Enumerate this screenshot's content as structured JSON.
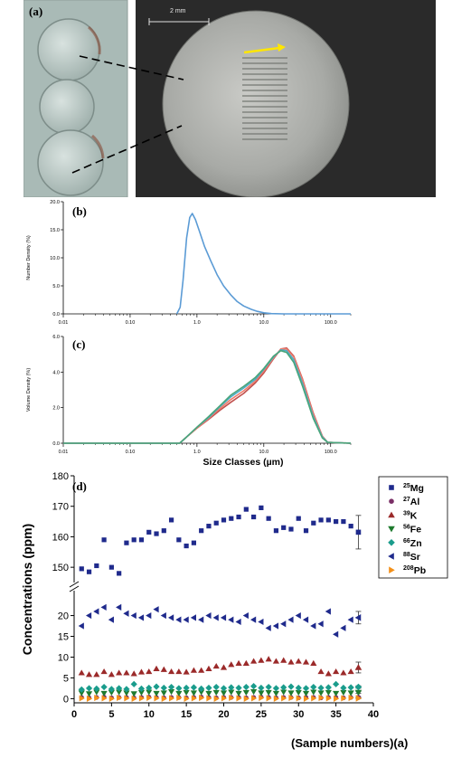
{
  "figure": {
    "panels": [
      "(a)",
      "(b)",
      "(c)",
      "(d)"
    ],
    "photo_scale_label": "2 mm",
    "bottom_caption": "(Sample numbers)(a)"
  },
  "chart_data": [
    {
      "panel": "(b)",
      "type": "line",
      "xscale": "log",
      "xlim": [
        0.01,
        200
      ],
      "ylim": [
        0,
        20
      ],
      "x_ticks": [
        "0.01",
        "0.10",
        "1.0",
        "10.0",
        "100.0"
      ],
      "y_ticks": [
        "0.0",
        "5.0",
        "10.0",
        "15.0",
        "20.0"
      ],
      "xlabel": "Size Classes (µm)",
      "ylabel": "Number Density (%)",
      "color": "#5b9bd5",
      "series": [
        {
          "x": [
            0.5,
            0.56,
            0.62,
            0.7,
            0.78,
            0.85,
            0.95,
            1.1,
            1.3,
            1.6,
            2,
            2.5,
            3.2,
            4,
            5,
            6.5,
            8,
            10,
            13,
            20,
            200
          ],
          "y": [
            0,
            1.2,
            6,
            13.5,
            17.2,
            17.9,
            16.8,
            14.6,
            12,
            9.5,
            7,
            5,
            3.4,
            2.2,
            1.4,
            0.8,
            0.45,
            0.2,
            0.05,
            0,
            0
          ]
        }
      ]
    },
    {
      "panel": "(c)",
      "type": "line",
      "xscale": "log",
      "xlim": [
        0.01,
        200
      ],
      "ylim": [
        0,
        6
      ],
      "x_ticks": [
        "0.01",
        "0.10",
        "1.0",
        "10.0",
        "100.0"
      ],
      "y_ticks": [
        "0.0",
        "2.0",
        "4.0",
        "6.0"
      ],
      "xlabel": "Size Classes (µm)",
      "ylabel": "Volume Density (%)",
      "series": [
        {
          "color": "#c0504d",
          "x": [
            0.01,
            0.55,
            0.7,
            1,
            1.5,
            2.2,
            3.2,
            5,
            7.5,
            10,
            14,
            18,
            22,
            28,
            38,
            55,
            75,
            90,
            200
          ],
          "y": [
            0,
            0,
            0.35,
            0.85,
            1.35,
            1.85,
            2.3,
            2.8,
            3.4,
            3.95,
            4.75,
            5.3,
            5.35,
            4.9,
            3.6,
            1.7,
            0.4,
            0.05,
            0
          ]
        },
        {
          "color": "#ef7b6b",
          "x": [
            0.01,
            0.55,
            0.7,
            1,
            1.5,
            2.2,
            3.2,
            5,
            7.5,
            10,
            14,
            18,
            22,
            28,
            38,
            55,
            75,
            90,
            200
          ],
          "y": [
            0,
            0,
            0.35,
            0.85,
            1.4,
            1.95,
            2.45,
            2.95,
            3.5,
            4.05,
            4.8,
            5.3,
            5.3,
            4.85,
            3.55,
            1.65,
            0.4,
            0.05,
            0
          ]
        },
        {
          "color": "#4bacc6",
          "x": [
            0.01,
            0.55,
            0.7,
            1,
            1.5,
            2.2,
            3.2,
            5,
            7.5,
            10,
            14,
            18,
            22,
            28,
            38,
            55,
            75,
            90,
            200
          ],
          "y": [
            0,
            0,
            0.35,
            0.9,
            1.45,
            2.05,
            2.6,
            3.1,
            3.6,
            4.15,
            4.85,
            5.25,
            5.2,
            4.7,
            3.35,
            1.5,
            0.35,
            0.05,
            0
          ]
        },
        {
          "color": "#4aa57a",
          "x": [
            0.01,
            0.55,
            0.7,
            1,
            1.5,
            2.2,
            3.2,
            5,
            7.5,
            10,
            14,
            18,
            22,
            28,
            38,
            55,
            75,
            90,
            200
          ],
          "y": [
            0,
            0,
            0.35,
            0.9,
            1.5,
            2.1,
            2.7,
            3.2,
            3.7,
            4.2,
            4.9,
            5.2,
            5.1,
            4.55,
            3.2,
            1.4,
            0.3,
            0.05,
            0
          ]
        }
      ]
    },
    {
      "panel": "(d)",
      "type": "scatter",
      "ylabel": "Concentrations (ppm)",
      "xlim": [
        0,
        40
      ],
      "x_ticks": [
        "0",
        "5",
        "10",
        "15",
        "20",
        "25",
        "30",
        "35",
        "40"
      ],
      "y_axis_break": true,
      "ylim_lower": [
        -1,
        26
      ],
      "y_ticks_lower": [
        "0",
        "5",
        "10",
        "15",
        "20"
      ],
      "ylim_upper": [
        145,
        180
      ],
      "y_ticks_upper": [
        "150",
        "160",
        "170",
        "180"
      ],
      "x": [
        1,
        2,
        3,
        4,
        5,
        6,
        7,
        8,
        9,
        10,
        11,
        12,
        13,
        14,
        15,
        16,
        17,
        18,
        19,
        20,
        21,
        22,
        23,
        24,
        25,
        26,
        27,
        28,
        29,
        30,
        31,
        32,
        33,
        34,
        35,
        36,
        37
      ],
      "series": [
        {
          "name": "25Mg",
          "iso": "25",
          "el": "Mg",
          "color": "#1f2a8c",
          "marker": "square",
          "values": [
            149.5,
            148.5,
            150.5,
            159,
            150,
            148,
            158,
            159,
            159,
            161.5,
            161,
            162,
            165.5,
            159,
            157,
            158,
            162,
            163.5,
            164.5,
            165.5,
            166,
            166.5,
            169,
            166.5,
            169.5,
            166,
            162,
            163,
            162.5,
            166,
            162,
            164.5,
            165.5,
            165.5,
            165,
            165,
            163.5
          ]
        },
        {
          "name": "27Al",
          "iso": "27",
          "el": "Al",
          "color": "#7a2f66",
          "marker": "circle",
          "values": [
            0.3,
            0.2,
            0.3,
            0.4,
            0.2,
            0.3,
            0.3,
            0.2,
            0.3,
            0.4,
            0.3,
            0.2,
            0.3,
            0.3,
            0.2,
            0.3,
            0.4,
            0.3,
            0.2,
            0.3,
            0.3,
            0.3,
            0.2,
            0.3,
            0.4,
            0.3,
            0.2,
            0.3,
            0.3,
            0.2,
            0.3,
            0.3,
            0.2,
            0.3,
            0.3,
            0.2,
            0.3
          ]
        },
        {
          "name": "39K",
          "iso": "39",
          "el": "K",
          "color": "#9b2a2a",
          "marker": "triangle-up",
          "values": [
            6.2,
            5.8,
            5.8,
            6.5,
            5.8,
            6.2,
            6.2,
            6,
            6.4,
            6.5,
            7.2,
            7,
            6.5,
            6.5,
            6.4,
            6.8,
            6.8,
            7.2,
            7.8,
            7.5,
            8.2,
            8.5,
            8.5,
            9,
            9.2,
            9.5,
            9,
            9.2,
            8.8,
            9,
            8.8,
            8.5,
            6.5,
            6,
            6.5,
            6.2,
            6.5
          ]
        },
        {
          "name": "56Fe",
          "iso": "56",
          "el": "Fe",
          "color": "#1e7a2e",
          "marker": "triangle-down",
          "values": [
            1.4,
            1.2,
            1.6,
            1.3,
            1.5,
            1.6,
            1.4,
            1.2,
            1.5,
            1.6,
            1.3,
            1.4,
            1.7,
            1.3,
            1.5,
            1.4,
            1.6,
            1.3,
            1.5,
            1.4,
            1.6,
            1.3,
            1.5,
            1.7,
            1.4,
            1.5,
            1.3,
            1.6,
            1.4,
            1.5,
            1.3,
            1.6,
            1.4,
            1.5,
            1.3,
            1.5,
            1.4
          ]
        },
        {
          "name": "66Zn",
          "iso": "66",
          "el": "Zn",
          "color": "#1a9c8c",
          "marker": "diamond",
          "values": [
            2.2,
            2.5,
            2.4,
            2.8,
            2.3,
            2.5,
            2.3,
            3.5,
            2.4,
            2.6,
            2.9,
            2.6,
            2.8,
            2.5,
            2.6,
            2.7,
            2.4,
            2.6,
            2.8,
            2.5,
            2.7,
            2.6,
            2.8,
            3,
            2.6,
            2.8,
            2.5,
            2.7,
            2.9,
            2.6,
            2.5,
            2.8,
            2.6,
            2.7,
            3.5,
            2.6,
            2.7
          ]
        },
        {
          "name": "88Sr",
          "iso": "88",
          "el": "Sr",
          "color": "#1f2a8c",
          "marker": "triangle-left",
          "values": [
            17.5,
            20,
            21,
            22,
            19,
            22,
            20.5,
            20,
            19.5,
            20,
            21.5,
            20,
            19.5,
            19,
            19,
            19.5,
            19,
            20,
            19.5,
            19.5,
            19,
            18.5,
            20,
            19,
            18.5,
            17,
            17.5,
            18,
            19,
            20,
            19,
            17.5,
            18,
            21,
            15.5,
            17,
            19
          ]
        },
        {
          "name": "208Pb",
          "iso": "208",
          "el": "Pb",
          "color": "#f39019",
          "marker": "triangle-right",
          "values": [
            0.1,
            0,
            0.2,
            0.1,
            0,
            0.2,
            0.1,
            0,
            0.1,
            0.2,
            0.1,
            0,
            0.1,
            0.2,
            0,
            0.1,
            0.2,
            0.1,
            0,
            0.1,
            0.2,
            0.1,
            0,
            0.1,
            0.2,
            0.1,
            0,
            0.1,
            0.2,
            0.1,
            0,
            0.1,
            0.2,
            0.1,
            0,
            0.1,
            0.2
          ]
        }
      ],
      "mean_points": {
        "x": 38,
        "items": [
          {
            "series": "25Mg",
            "value": 161.5,
            "err": 5.5
          },
          {
            "series": "39K",
            "value": 7.5,
            "err": 1.3
          },
          {
            "series": "88Sr",
            "value": 19.5,
            "err": 1.5
          },
          {
            "series": "66Zn",
            "value": 2.8,
            "err": 0.3
          },
          {
            "series": "56Fe",
            "value": 1.5,
            "err": 0.2
          },
          {
            "series": "27Al",
            "value": 0.3,
            "err": 0.1
          },
          {
            "series": "208Pb",
            "value": 0.1,
            "err": 0.1
          }
        ]
      }
    }
  ]
}
